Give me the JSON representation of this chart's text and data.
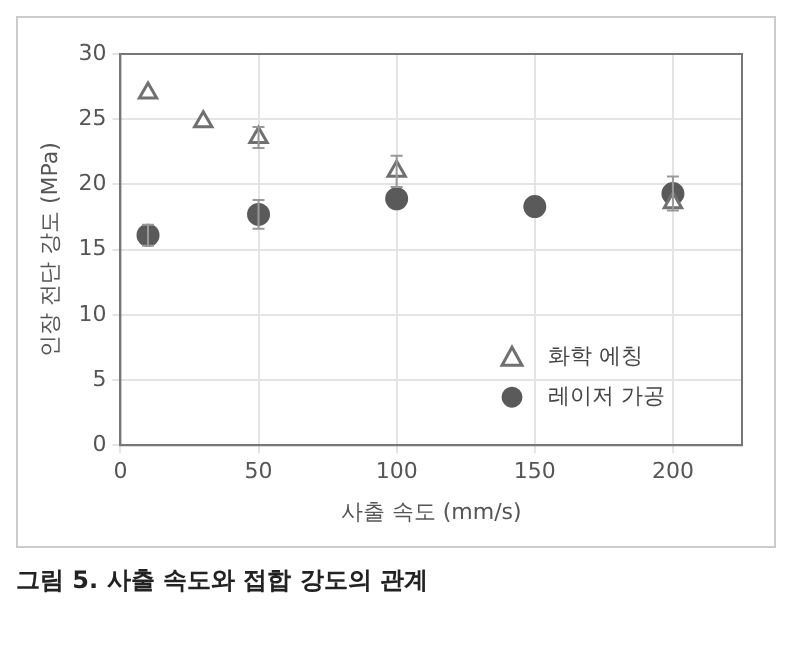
{
  "chart_data": {
    "type": "scatter",
    "ylabel": "인장 전단 강도 (MPa)",
    "xlabel": "사출 속도 (mm/s)",
    "annotations": [
      "그림 5. 사출 속도와 접합 강도의 관계"
    ],
    "xlim": [
      0,
      225
    ],
    "xticks": [
      0,
      50,
      100,
      150,
      200
    ],
    "ylim": [
      0,
      30
    ],
    "yticks": [
      0,
      5,
      10,
      15,
      20,
      25,
      30
    ],
    "grid": true,
    "legend": "bottom right",
    "series": [
      {
        "name": "화학 에칭",
        "color": "#707070",
        "marker": "triangle",
        "x": [
          10,
          30,
          50,
          100,
          200
        ],
        "values": [
          27,
          24.8,
          23.6,
          21,
          18.6
        ],
        "errors": [
          null,
          null,
          0.8,
          1.2,
          null
        ]
      },
      {
        "name": "레이저 가공",
        "color": "#5a5a5a",
        "marker": "circle",
        "x": [
          10,
          50,
          100,
          150,
          200
        ],
        "values": [
          16.1,
          17.7,
          18.9,
          18.3,
          19.3
        ],
        "errors": [
          0.8,
          1.1,
          null,
          null,
          1.3
        ]
      }
    ]
  }
}
